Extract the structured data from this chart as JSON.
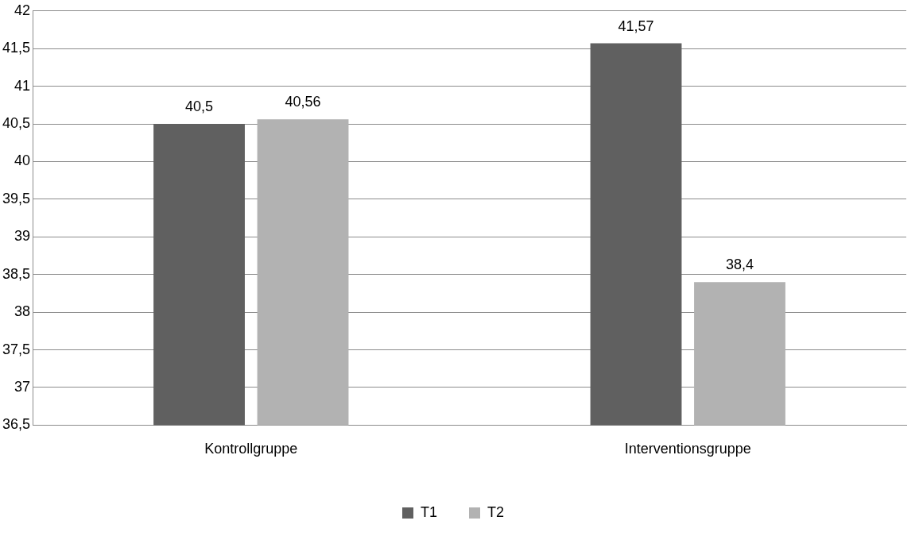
{
  "chart_data": {
    "type": "bar",
    "categories": [
      "Kontrollgruppe",
      "Interventionsgruppe"
    ],
    "series": [
      {
        "name": "T1",
        "color": "#606060",
        "values": [
          40.5,
          41.57
        ],
        "value_labels": [
          "40,5",
          "41,57"
        ]
      },
      {
        "name": "T2",
        "color": "#b2b2b2",
        "values": [
          40.56,
          38.4
        ],
        "value_labels": [
          "40,56",
          "38,4"
        ]
      }
    ],
    "ylim": [
      36.5,
      42
    ],
    "yticks": [
      {
        "value": 36.5,
        "label": "36,5"
      },
      37,
      {
        "value": 37.5,
        "label": "37,5"
      },
      38,
      {
        "value": 38.5,
        "label": "38,5"
      },
      39,
      {
        "value": 39.5,
        "label": "39,5"
      },
      40,
      {
        "value": 40.5,
        "label": "40,5"
      },
      41,
      {
        "value": 41.5,
        "label": "41,5"
      },
      42
    ],
    "grid": "y",
    "legend": "bottom"
  }
}
